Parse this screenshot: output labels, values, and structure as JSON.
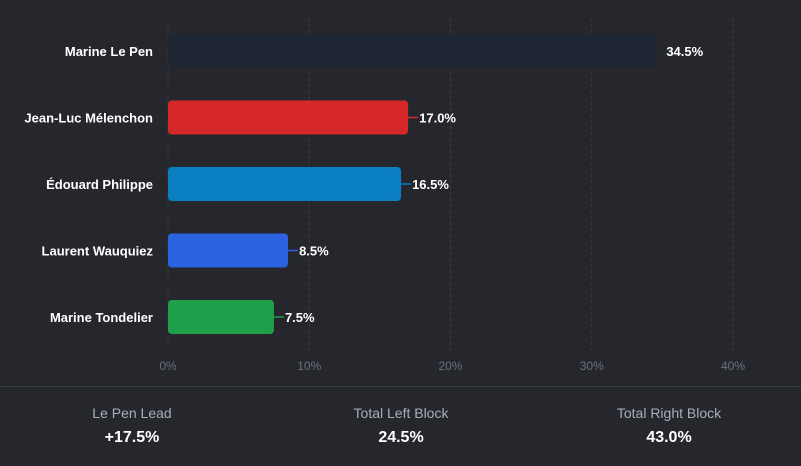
{
  "chart_data": {
    "type": "bar",
    "orientation": "horizontal",
    "categories": [
      "Marine Le Pen",
      "Jean-Luc Mélenchon",
      "Édouard Philippe",
      "Laurent Wauquiez",
      "Marine Tondelier"
    ],
    "values": [
      34.5,
      17.0,
      16.5,
      8.5,
      7.5
    ],
    "value_labels": [
      "34.5%",
      "17.0%",
      "16.5%",
      "8.5%",
      "7.5%"
    ],
    "colors": [
      "#1e2533",
      "#d62828",
      "#0a7fc2",
      "#2a62e0",
      "#1ea04a"
    ],
    "xlim": [
      0,
      40
    ],
    "x_ticks": [
      0,
      10,
      20,
      30,
      40
    ],
    "x_tick_labels": [
      "0%",
      "10%",
      "20%",
      "30%",
      "40%"
    ],
    "grid": "vertical dashed",
    "title": "",
    "xlabel": "",
    "ylabel": ""
  },
  "stats": [
    {
      "label": "Le Pen Lead",
      "value": "+17.5%"
    },
    {
      "label": "Total Left Block",
      "value": "24.5%"
    },
    {
      "label": "Total Right Block",
      "value": "43.0%"
    }
  ],
  "colors": {
    "background": "#25272d",
    "grid": "#3a3d45",
    "tick_text": "#6c707a",
    "category_text": "#ffffff",
    "value_text": "#ffffff"
  }
}
